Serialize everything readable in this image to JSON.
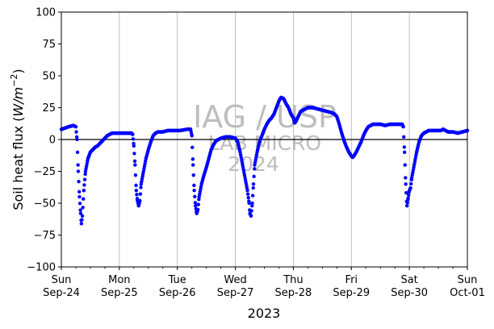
{
  "chart_data": {
    "type": "scatter",
    "title": "",
    "xlabel": "2023",
    "ylabel": "Soil heat flux (W/m⁻²)",
    "ylabel_parts": {
      "prefix": "Soil heat flux (",
      "unit": "W/m",
      "exponent": "−2",
      "suffix": ")"
    },
    "ylim": [
      -100,
      100
    ],
    "xlim": [
      "2023-09-24 00:00",
      "2023-10-01 00:00"
    ],
    "yticks": [
      -100,
      -75,
      -50,
      -25,
      0,
      25,
      50,
      75,
      100
    ],
    "xticks": [
      {
        "day": "Sun",
        "date": "Sep-24"
      },
      {
        "day": "Mon",
        "date": "Sep-25"
      },
      {
        "day": "Tue",
        "date": "Sep-26"
      },
      {
        "day": "Wed",
        "date": "Sep-27"
      },
      {
        "day": "Thu",
        "date": "Sep-28"
      },
      {
        "day": "Fri",
        "date": "Sep-29"
      },
      {
        "day": "Sat",
        "date": "Sep-30"
      },
      {
        "day": "Sun",
        "date": "Oct-01"
      }
    ],
    "grid": "vertical",
    "zero_line": true,
    "series_color": "#0000ff",
    "series": [
      {
        "name": "",
        "points_hours": [
          [
            0,
            8
          ],
          [
            3,
            10
          ],
          [
            5,
            11
          ],
          [
            6,
            10
          ],
          [
            6.5,
            0
          ],
          [
            7,
            -25
          ],
          [
            7.5,
            -45
          ],
          [
            8,
            -58
          ],
          [
            8.3,
            -66
          ],
          [
            8.7,
            -60
          ],
          [
            9.3,
            -40
          ],
          [
            10,
            -25
          ],
          [
            11,
            -15
          ],
          [
            12,
            -10
          ],
          [
            13,
            -8
          ],
          [
            14,
            -6
          ],
          [
            15,
            -5
          ],
          [
            16,
            -3
          ],
          [
            17,
            -1
          ],
          [
            18,
            1
          ],
          [
            19,
            3
          ],
          [
            20,
            4
          ],
          [
            21,
            5
          ],
          [
            22,
            5
          ],
          [
            24,
            5
          ],
          [
            25,
            5
          ],
          [
            26,
            5
          ],
          [
            27,
            5
          ],
          [
            28,
            5
          ],
          [
            29,
            5
          ],
          [
            29.5,
            4
          ],
          [
            30,
            -5
          ],
          [
            30.5,
            -20
          ],
          [
            31,
            -40
          ],
          [
            31.5,
            -48
          ],
          [
            32,
            -52
          ],
          [
            32.5,
            -48
          ],
          [
            33,
            -35
          ],
          [
            34,
            -25
          ],
          [
            35,
            -15
          ],
          [
            36,
            -8
          ],
          [
            37,
            -2
          ],
          [
            38,
            3
          ],
          [
            39,
            5
          ],
          [
            40,
            6
          ],
          [
            42,
            6
          ],
          [
            44,
            7
          ],
          [
            46,
            7
          ],
          [
            48,
            7
          ],
          [
            49,
            7
          ],
          [
            52,
            8
          ],
          [
            53.5,
            8
          ],
          [
            54,
            3
          ],
          [
            54.5,
            -20
          ],
          [
            55,
            -40
          ],
          [
            55.5,
            -52
          ],
          [
            56,
            -58
          ],
          [
            56.5,
            -55
          ],
          [
            57,
            -45
          ],
          [
            58,
            -35
          ],
          [
            59,
            -28
          ],
          [
            60,
            -22
          ],
          [
            61,
            -15
          ],
          [
            62,
            -8
          ],
          [
            63,
            -4
          ],
          [
            64,
            -1
          ],
          [
            66,
            1
          ],
          [
            68,
            2
          ],
          [
            70,
            2
          ],
          [
            72,
            1
          ],
          [
            73,
            -2
          ],
          [
            74,
            -10
          ],
          [
            75,
            -20
          ],
          [
            76,
            -30
          ],
          [
            77,
            -40
          ],
          [
            77.7,
            -50
          ],
          [
            78,
            -58
          ],
          [
            78.5,
            -60
          ],
          [
            79,
            -50
          ],
          [
            79.5,
            -35
          ],
          [
            80,
            -20
          ],
          [
            81,
            -10
          ],
          [
            82,
            -2
          ],
          [
            83,
            3
          ],
          [
            84,
            8
          ],
          [
            85,
            12
          ],
          [
            86,
            15
          ],
          [
            87,
            17
          ],
          [
            88,
            20
          ],
          [
            89,
            25
          ],
          [
            90,
            30
          ],
          [
            90.5,
            32
          ],
          [
            91,
            33
          ],
          [
            92,
            32
          ],
          [
            93,
            28
          ],
          [
            94,
            25
          ],
          [
            95,
            20
          ],
          [
            96,
            17
          ],
          [
            96.5,
            13
          ],
          [
            97,
            14
          ],
          [
            98,
            18
          ],
          [
            99,
            22
          ],
          [
            100,
            23
          ],
          [
            101,
            24
          ],
          [
            102,
            25
          ],
          [
            104,
            25
          ],
          [
            106,
            24
          ],
          [
            108,
            23
          ],
          [
            110,
            22
          ],
          [
            112,
            21
          ],
          [
            113,
            20
          ],
          [
            114,
            18
          ],
          [
            115,
            12
          ],
          [
            116,
            5
          ],
          [
            117,
            -1
          ],
          [
            118,
            -6
          ],
          [
            119,
            -10
          ],
          [
            120,
            -13
          ],
          [
            120.5,
            -14
          ],
          [
            121,
            -13
          ],
          [
            122,
            -10
          ],
          [
            123,
            -6
          ],
          [
            124,
            -2
          ],
          [
            125,
            3
          ],
          [
            126,
            7
          ],
          [
            127,
            10
          ],
          [
            128,
            11
          ],
          [
            129,
            12
          ],
          [
            130,
            12
          ],
          [
            132,
            12
          ],
          [
            134,
            11
          ],
          [
            136,
            12
          ],
          [
            137,
            12
          ],
          [
            138,
            12
          ],
          [
            140,
            12
          ],
          [
            141,
            12
          ],
          [
            141.5,
            10
          ],
          [
            142,
            -10
          ],
          [
            142.5,
            -35
          ],
          [
            143,
            -52
          ],
          [
            143.5,
            -46
          ],
          [
            144,
            -40
          ],
          [
            144.5,
            -38
          ],
          [
            145,
            -30
          ],
          [
            146,
            -20
          ],
          [
            147,
            -10
          ],
          [
            148,
            -2
          ],
          [
            149,
            3
          ],
          [
            150,
            5
          ],
          [
            151,
            6
          ],
          [
            152,
            7
          ],
          [
            154,
            7
          ],
          [
            156,
            7
          ],
          [
            157,
            7
          ],
          [
            158,
            8
          ],
          [
            159,
            7
          ],
          [
            160,
            6
          ],
          [
            162,
            6
          ],
          [
            164,
            5
          ],
          [
            166,
            6
          ],
          [
            168,
            7
          ]
        ]
      }
    ],
    "watermark": {
      "line1": "IAG / USP",
      "line2": "LAB MICRO",
      "line3": "2024"
    }
  }
}
